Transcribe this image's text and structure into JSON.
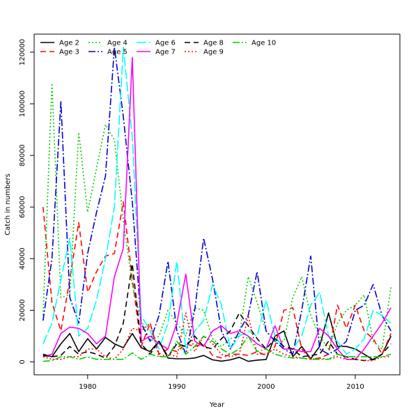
{
  "chart_data": {
    "type": "line",
    "title": "",
    "xlabel": "Year",
    "ylabel": "Catch in numbers",
    "xlim": [
      1974,
      2015
    ],
    "ylim": [
      -5000,
      127000
    ],
    "x_ticks": [
      1980,
      1990,
      2000,
      2010
    ],
    "y_ticks": [
      0,
      20000,
      40000,
      60000,
      80000,
      100000,
      120000
    ],
    "grid": false,
    "legend_position": "top-left",
    "x": [
      1975,
      1976,
      1977,
      1978,
      1979,
      1980,
      1981,
      1982,
      1983,
      1984,
      1985,
      1986,
      1987,
      1988,
      1989,
      1990,
      1991,
      1992,
      1993,
      1994,
      1995,
      1996,
      1997,
      1998,
      1999,
      2000,
      2001,
      2002,
      2003,
      2004,
      2005,
      2006,
      2007,
      2008,
      2009,
      2010,
      2011,
      2012,
      2013,
      2014
    ],
    "series": [
      {
        "name": "Age 2",
        "color": "#000000",
        "dash": "solid",
        "values": [
          3000,
          2000,
          7000,
          11000,
          4000,
          9000,
          5000,
          9500,
          7000,
          5500,
          11000,
          5500,
          4000,
          8000,
          1500,
          1200,
          1200,
          1500,
          2500,
          800,
          300,
          800,
          1800,
          200,
          700,
          900,
          10000,
          12000,
          2000,
          6000,
          1200,
          6000,
          19000,
          6000,
          6000,
          5000,
          3000,
          800,
          3000,
          10000
        ]
      },
      {
        "name": "Age 3",
        "color": "#ff0000",
        "dash": "8,5",
        "values": [
          60000,
          23000,
          12000,
          32000,
          54000,
          27000,
          35000,
          41000,
          42000,
          62000,
          32000,
          6000,
          15000,
          3000,
          5000,
          4000,
          7000,
          6000,
          7000,
          2500,
          1500,
          3000,
          3000,
          2500,
          4000,
          2500,
          6000,
          20000,
          21000,
          5000,
          1000,
          1500,
          3000,
          22000,
          13000,
          22000,
          12000,
          9000,
          3000,
          11000
        ]
      },
      {
        "name": "Age 4",
        "color": "#00cc00",
        "dash": "2,3",
        "values": [
          18000,
          108000,
          25000,
          26000,
          89000,
          58000,
          75000,
          92000,
          86000,
          55000,
          30000,
          16000,
          8000,
          10000,
          20000,
          15000,
          10000,
          21000,
          20000,
          9000,
          6000,
          9000,
          10000,
          33000,
          23000,
          12000,
          8000,
          8000,
          25000,
          33000,
          18000,
          10000,
          5000,
          15000,
          20000,
          22000,
          26000,
          8000,
          5000,
          29000
        ]
      },
      {
        "name": "Age 5",
        "color": "#0000cc",
        "dash": "10,3,2,3",
        "values": [
          16000,
          40000,
          101000,
          25000,
          15000,
          42000,
          58000,
          72000,
          122000,
          95000,
          62000,
          15000,
          8000,
          18000,
          39000,
          12000,
          3000,
          20000,
          48000,
          32000,
          12000,
          5000,
          12000,
          18000,
          35000,
          12000,
          8000,
          5000,
          3000,
          20000,
          41000,
          5000,
          3000,
          5000,
          8000,
          20000,
          22000,
          30000,
          18000,
          12000
        ]
      },
      {
        "name": "Age 6",
        "color": "#00ffff",
        "dash": "14,4",
        "values": [
          7000,
          15000,
          32000,
          48000,
          10000,
          13000,
          24000,
          40000,
          60000,
          122000,
          87000,
          18000,
          12000,
          5000,
          15000,
          39000,
          5000,
          12000,
          16000,
          30000,
          22000,
          5000,
          10000,
          12000,
          10000,
          24000,
          10000,
          5000,
          5000,
          10000,
          22000,
          27000,
          10000,
          8000,
          3000,
          5000,
          9000,
          20000,
          18000,
          15000
        ]
      },
      {
        "name": "Age 7",
        "color": "#ff00ff",
        "dash": "solid",
        "values": [
          2000,
          3000,
          11000,
          13500,
          13000,
          11000,
          7000,
          10000,
          33000,
          44000,
          118000,
          8000,
          10000,
          7000,
          5000,
          15000,
          34000,
          8000,
          6000,
          12000,
          14000,
          11000,
          12000,
          10000,
          7000,
          5000,
          14000,
          5000,
          5000,
          4000,
          4000,
          13000,
          10000,
          5000,
          1000,
          1000,
          5000,
          10000,
          15000,
          21000
        ]
      },
      {
        "name": "Age 8",
        "color": "#000000",
        "dash": "8,5",
        "values": [
          2500,
          2000,
          2500,
          6000,
          3000,
          4000,
          3000,
          1500,
          6000,
          15000,
          38000,
          7000,
          3000,
          8000,
          2000,
          7000,
          6000,
          10000,
          6000,
          5000,
          9000,
          12000,
          19000,
          14000,
          9000,
          5000,
          9000,
          6000,
          5000,
          2000,
          2500,
          3000,
          8000,
          3000,
          2000,
          1000,
          500,
          1000,
          3000,
          7000
        ]
      },
      {
        "name": "Age 9",
        "color": "#ff0000",
        "dash": "2,3",
        "values": [
          2000,
          1000,
          1000,
          2000,
          2000,
          5000,
          5000,
          2000,
          1000,
          5000,
          13000,
          12000,
          15000,
          2000,
          3000,
          2000,
          19000,
          4000,
          10000,
          7000,
          3000,
          2000,
          3000,
          18000,
          3000,
          3000,
          5000,
          3000,
          2000,
          1500,
          1000,
          1500,
          1000,
          2000,
          1000,
          1000,
          500,
          500,
          2000,
          2000
        ]
      },
      {
        "name": "Age 10",
        "color": "#00cc00",
        "dash": "10,3,2,3",
        "values": [
          200,
          500,
          2000,
          2000,
          1000,
          2000,
          1000,
          1000,
          1000,
          1000,
          3500,
          1000,
          3000,
          2000,
          2000,
          8000,
          3000,
          6000,
          10000,
          8000,
          5000,
          3000,
          5000,
          10000,
          4000,
          5000,
          3000,
          2000,
          1500,
          1500,
          1000,
          1000,
          1000,
          3000,
          2000,
          2000,
          2000,
          2000,
          2000,
          3000
        ]
      }
    ]
  }
}
